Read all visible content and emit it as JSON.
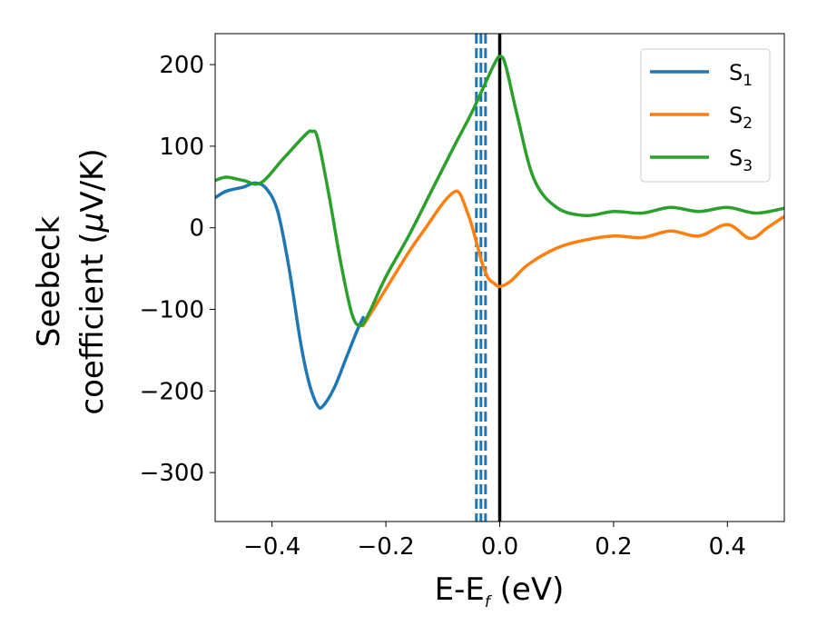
{
  "chart_data": {
    "type": "line",
    "title": "",
    "xlabel": "E-E",
    "xlabel_subscript": "f",
    "xlabel_unit": " (eV)",
    "ylabel_line1": "Seebeck",
    "ylabel_line2_text": "coefficient  (",
    "ylabel_mu": "μ",
    "ylabel_line2_unit": "V/K)",
    "xlim": [
      -0.5,
      0.5
    ],
    "ylim": [
      -360,
      238
    ],
    "xticks": [
      -0.4,
      -0.2,
      0.0,
      0.2,
      0.4
    ],
    "xtick_labels": [
      "−0.4",
      "−0.2",
      "0.0",
      "0.2",
      "0.4"
    ],
    "yticks": [
      200,
      100,
      0,
      -100,
      -200,
      -300
    ],
    "ytick_labels": [
      "200",
      "100",
      "0",
      "−100",
      "−200",
      "−300"
    ],
    "grid": false,
    "legend_position": "top-right",
    "vlines": [
      {
        "x": -0.041,
        "style": "dashed",
        "color": "#1f77b4"
      },
      {
        "x": -0.033,
        "style": "dashed",
        "color": "#1f77b4"
      },
      {
        "x": -0.025,
        "style": "dashed",
        "color": "#1f77b4"
      },
      {
        "x": 0.0,
        "style": "solid",
        "color": "#000000"
      }
    ],
    "series": [
      {
        "name": "S",
        "subscript": "1",
        "color": "#1f77b4",
        "x": [
          -0.5,
          -0.48,
          -0.45,
          -0.43,
          -0.41,
          -0.39,
          -0.37,
          -0.35,
          -0.335,
          -0.32,
          -0.31,
          -0.29,
          -0.27,
          -0.25,
          -0.24
        ],
        "y": [
          37,
          45,
          50,
          55,
          48,
          20,
          -50,
          -140,
          -190,
          -218,
          -218,
          -195,
          -160,
          -125,
          -110
        ]
      },
      {
        "name": "S",
        "subscript": "2",
        "color": "#ff7f0e",
        "x": [
          -0.24,
          -0.2,
          -0.16,
          -0.13,
          -0.1,
          -0.08,
          -0.07,
          -0.06,
          -0.05,
          -0.04,
          -0.03,
          -0.02,
          -0.01,
          0.0,
          0.02,
          0.05,
          0.1,
          0.15,
          0.2,
          0.25,
          0.3,
          0.35,
          0.4,
          0.44,
          0.47,
          0.5
        ],
        "y": [
          -120,
          -75,
          -30,
          0,
          30,
          44,
          42,
          25,
          5,
          -20,
          -45,
          -62,
          -68,
          -72,
          -65,
          -45,
          -25,
          -15,
          -10,
          -12,
          -4,
          -10,
          4,
          -13,
          0,
          14
        ]
      },
      {
        "name": "S",
        "subscript": "3",
        "color": "#2ca02c",
        "x": [
          -0.5,
          -0.48,
          -0.45,
          -0.42,
          -0.38,
          -0.34,
          -0.33,
          -0.32,
          -0.3,
          -0.28,
          -0.26,
          -0.245,
          -0.23,
          -0.2,
          -0.16,
          -0.12,
          -0.08,
          -0.05,
          -0.03,
          -0.01,
          0.0,
          0.01,
          0.03,
          0.06,
          0.1,
          0.15,
          0.2,
          0.25,
          0.3,
          0.35,
          0.4,
          0.45,
          0.5
        ],
        "y": [
          58,
          62,
          58,
          55,
          85,
          115,
          118,
          110,
          40,
          -40,
          -105,
          -120,
          -105,
          -60,
          -10,
          45,
          100,
          140,
          170,
          200,
          210,
          200,
          140,
          60,
          25,
          15,
          20,
          18,
          25,
          20,
          25,
          18,
          24
        ]
      }
    ]
  }
}
